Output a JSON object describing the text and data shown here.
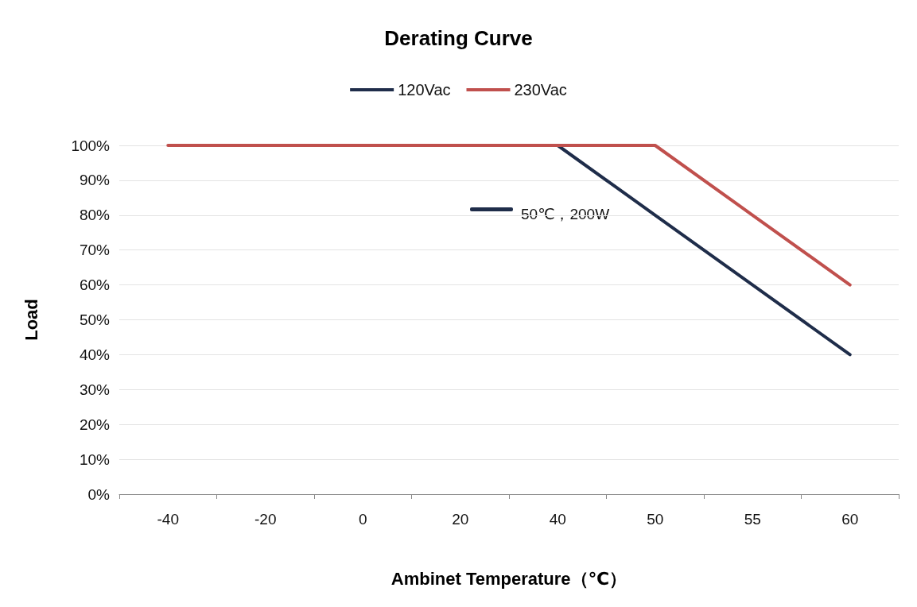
{
  "chart_data": {
    "type": "line",
    "title": "Derating Curve",
    "xlabel": "Ambinet Temperature（℃）",
    "ylabel": "Load",
    "categories": [
      "-40",
      "-20",
      "0",
      "20",
      "40",
      "50",
      "55",
      "60"
    ],
    "series": [
      {
        "name": "120Vac",
        "color": "#1f2d4a",
        "values": [
          null,
          null,
          null,
          null,
          100,
          80,
          60,
          40
        ]
      },
      {
        "name": "230Vac",
        "color": "#c0504d",
        "values": [
          100,
          100,
          100,
          100,
          100,
          100,
          80,
          60
        ]
      }
    ],
    "ylim": [
      0,
      100
    ],
    "yticks": [
      {
        "value": 0,
        "label": "0%"
      },
      {
        "value": 10,
        "label": "10%"
      },
      {
        "value": 20,
        "label": "20%"
      },
      {
        "value": 30,
        "label": "30%"
      },
      {
        "value": 40,
        "label": "40%"
      },
      {
        "value": 50,
        "label": "50%"
      },
      {
        "value": 60,
        "label": "60%"
      },
      {
        "value": 70,
        "label": "70%"
      },
      {
        "value": 80,
        "label": "80%"
      },
      {
        "value": 90,
        "label": "90%"
      },
      {
        "value": 100,
        "label": "100%"
      }
    ],
    "annotations": [
      "50℃，200W"
    ],
    "grid": "y",
    "legend": "top",
    "marker": "none",
    "line_style": "solid"
  }
}
